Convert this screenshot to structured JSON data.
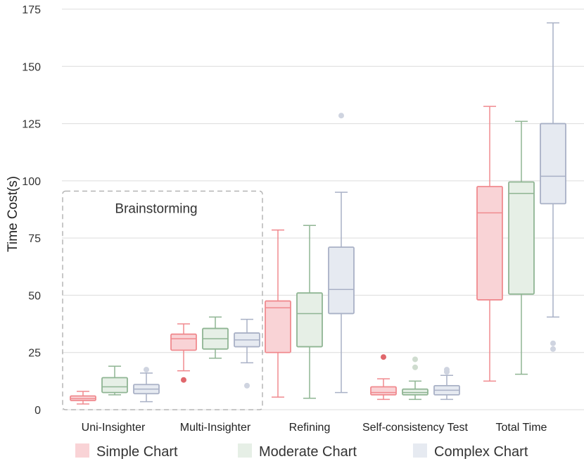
{
  "chart_data": {
    "type": "box",
    "ylabel": "Time Cost(s)",
    "xlabel": "",
    "ylim": [
      0,
      175
    ],
    "yticks": [
      0,
      25,
      50,
      75,
      100,
      125,
      150,
      175
    ],
    "grid": "horizontal",
    "legend_position": "bottom",
    "categories": [
      "Uni-Insighter",
      "Multi-Insighter",
      "Refining",
      "Self-consistency Test",
      "Total Time"
    ],
    "series": [
      {
        "name": "Simple Chart",
        "color": "#f08a8f",
        "fill": "#f9d3d6",
        "boxes": [
          {
            "whislo": 2.5,
            "q1": 4,
            "med": 4.8,
            "q3": 6,
            "whishi": 8,
            "fliers": []
          },
          {
            "whislo": 17,
            "q1": 26,
            "med": 31,
            "q3": 33,
            "whishi": 37.5,
            "fliers": [
              13
            ]
          },
          {
            "whislo": 5.5,
            "q1": 25,
            "med": 44.5,
            "q3": 47.5,
            "whishi": 78.5,
            "fliers": []
          },
          {
            "whislo": 4.5,
            "q1": 6.5,
            "med": 7.5,
            "q3": 10,
            "whishi": 13.5,
            "fliers": [
              23
            ]
          },
          {
            "whislo": 12.5,
            "q1": 48,
            "med": 86,
            "q3": 97.5,
            "whishi": 132.5,
            "fliers": []
          }
        ]
      },
      {
        "name": "Moderate Chart",
        "color": "#8fb593",
        "fill": "#e6efe6",
        "boxes": [
          {
            "whislo": 6.5,
            "q1": 7.5,
            "med": 10,
            "q3": 14,
            "whishi": 19,
            "fliers": []
          },
          {
            "whislo": 22.5,
            "q1": 26.5,
            "med": 31,
            "q3": 35.5,
            "whishi": 40.5,
            "fliers": []
          },
          {
            "whislo": 5,
            "q1": 27.5,
            "med": 42,
            "q3": 51,
            "whishi": 80.5,
            "fliers": []
          },
          {
            "whislo": 4.5,
            "q1": 6.5,
            "med": 7.5,
            "q3": 9,
            "whishi": 12.5,
            "fliers": [
              18.5,
              22
            ]
          },
          {
            "whislo": 15.5,
            "q1": 50.5,
            "med": 94.5,
            "q3": 99.5,
            "whishi": 126,
            "fliers": []
          }
        ]
      },
      {
        "name": "Complex Chart",
        "color": "#a9b1c6",
        "fill": "#e6eaf1",
        "boxes": [
          {
            "whislo": 3.5,
            "q1": 7,
            "med": 9,
            "q3": 11,
            "whishi": 16,
            "fliers": [
              17.5
            ]
          },
          {
            "whislo": 20.5,
            "q1": 27.5,
            "med": 30.5,
            "q3": 33.5,
            "whishi": 39.5,
            "fliers": [
              10.5
            ]
          },
          {
            "whislo": 7.5,
            "q1": 42,
            "med": 52.5,
            "q3": 71,
            "whishi": 95,
            "fliers": [
              128.5
            ]
          },
          {
            "whislo": 4.5,
            "q1": 6.5,
            "med": 8.5,
            "q3": 10.5,
            "whishi": 15,
            "fliers": [
              16.5,
              17.5
            ]
          },
          {
            "whislo": 40.5,
            "q1": 90,
            "med": 102,
            "q3": 125,
            "whishi": 169,
            "fliers": [
              26.5,
              29
            ]
          }
        ]
      }
    ],
    "annotation": {
      "label": "Brainstorming",
      "spans_categories": [
        "Uni-Insighter",
        "Multi-Insighter"
      ],
      "style": "dashed box"
    }
  }
}
